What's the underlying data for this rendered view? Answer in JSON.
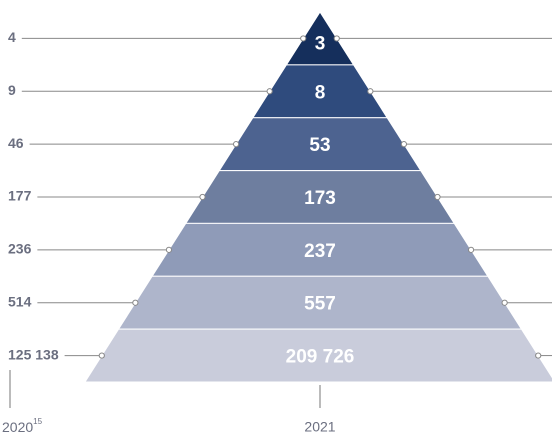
{
  "chart_data": {
    "type": "pyramid",
    "series": [
      {
        "name": "2020",
        "values": [
          4,
          9,
          46,
          177,
          236,
          514,
          125138
        ],
        "value_labels": [
          "4",
          "9",
          "46",
          "177",
          "236",
          "514",
          "125 138"
        ]
      },
      {
        "name": "2021",
        "values": [
          3,
          8,
          53,
          173,
          237,
          557,
          209726
        ],
        "value_labels": [
          "3",
          "8",
          "53",
          "173",
          "237",
          "557",
          "209 726"
        ]
      }
    ],
    "footnote": "15",
    "colors": [
      "#152f5c",
      "#2f4b7d",
      "#4d6390",
      "#6e7e9f",
      "#8f9bb8",
      "#aeb5cb",
      "#c9ccdb"
    ]
  }
}
